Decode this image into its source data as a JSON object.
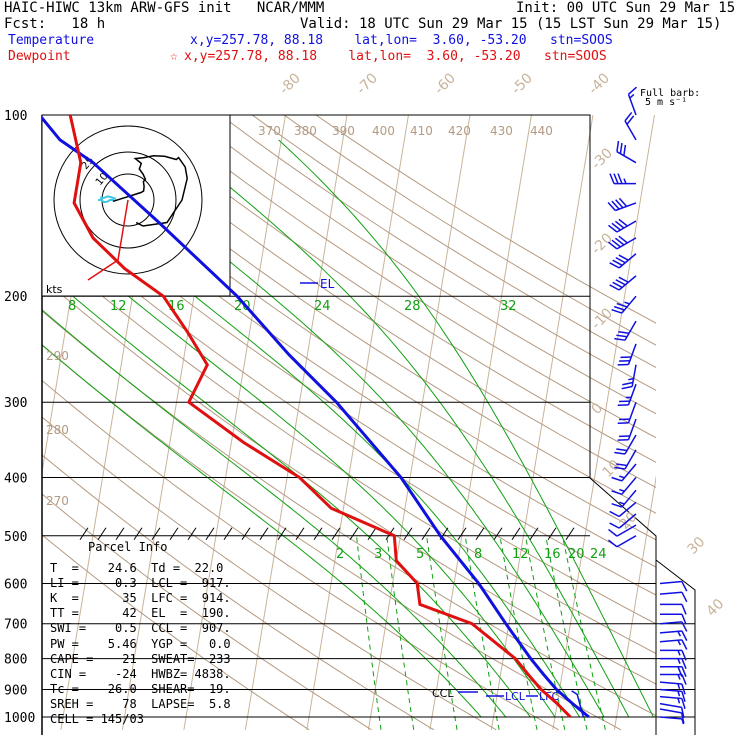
{
  "header": {
    "title": "HAIC-HIWC 13km ARW-GFS init   NCAR/MMM",
    "init": "Init: 00 UTC Sun 29 Mar 15",
    "fcst": "Fcst:   18 h",
    "valid": "Valid: 18 UTC Sun 29 Mar 15 (15 LST Sun 29 Mar 15)",
    "temp_label": "Temperature",
    "temp_info": "x,y=257.78, 88.18    lat,lon=  3.60, -53.20   stn=SOOS",
    "dew_label": "Dewpoint",
    "dew_marker": "☆",
    "dew_info": "x,y=257.78, 88.18    lat,lon=  3.60, -53.20   stn=SOOS",
    "barb_label_1": "Full barb:",
    "barb_label_2": "5 m s⁻¹"
  },
  "colors": {
    "temperature": "#1010e0",
    "dewpoint": "#e01010",
    "isotherm": "#c8b49a",
    "dry_adiabat": "#b49a82",
    "moist_adiabat": "#10a010",
    "mixing_ratio": "#10a010",
    "hodo_upper": "#000000",
    "hodo_lower": "#40c8e8"
  },
  "chart_data": {
    "type": "line",
    "title": "",
    "ylabel": "",
    "pressure_levels": [
      "100",
      "200",
      "300",
      "400",
      "500",
      "600",
      "700",
      "800",
      "900",
      "1000"
    ],
    "isotherm_labels": [
      "-80",
      "-70",
      "-60",
      "-50",
      "-40",
      "-30",
      "-20",
      "-10",
      "0",
      "10",
      "20",
      "30",
      "40"
    ],
    "theta_labels_top": [
      "370",
      "380",
      "390",
      "400",
      "410",
      "420",
      "430",
      "440"
    ],
    "theta_labels_left": [
      "290",
      "280",
      "270"
    ],
    "moist_labels_200": [
      "8",
      "12",
      "16",
      "20",
      "24",
      "28",
      "32"
    ],
    "mixing_labels_500": [
      "2",
      "3",
      "5",
      "8",
      "12",
      "16",
      "20",
      "24"
    ],
    "series": [
      {
        "name": "Temperature",
        "points": [
          [
            1000,
            25.5
          ],
          [
            950,
            22.5
          ],
          [
            900,
            19.5
          ],
          [
            850,
            17
          ],
          [
            800,
            14.5
          ],
          [
            700,
            9.5
          ],
          [
            600,
            4
          ],
          [
            500,
            -3.5
          ],
          [
            400,
            -11.5
          ],
          [
            300,
            -24
          ],
          [
            250,
            -33
          ],
          [
            200,
            -43
          ],
          [
            150,
            -58
          ],
          [
            120,
            -70
          ],
          [
            110,
            -76
          ],
          [
            100,
            -80
          ]
        ]
      },
      {
        "name": "Dewpoint",
        "points": [
          [
            1000,
            22.5
          ],
          [
            950,
            20
          ],
          [
            900,
            17
          ],
          [
            850,
            14.5
          ],
          [
            800,
            12
          ],
          [
            700,
            4
          ],
          [
            650,
            -5
          ],
          [
            600,
            -6
          ],
          [
            550,
            -10
          ],
          [
            500,
            -11
          ],
          [
            450,
            -22
          ],
          [
            400,
            -28
          ],
          [
            350,
            -38
          ],
          [
            300,
            -48
          ],
          [
            260,
            -46
          ],
          [
            230,
            -50
          ],
          [
            200,
            -55
          ],
          [
            180,
            -62
          ],
          [
            160,
            -68
          ],
          [
            140,
            -72
          ],
          [
            120,
            -72
          ],
          [
            100,
            -75
          ]
        ]
      }
    ],
    "annotations": [
      "EL",
      "CCL",
      "LCL",
      "LFC"
    ],
    "wind_profile": [
      [
        1000,
        95,
        4
      ],
      [
        970,
        100,
        6
      ],
      [
        950,
        100,
        7
      ],
      [
        925,
        95,
        8
      ],
      [
        900,
        95,
        9
      ],
      [
        875,
        95,
        9
      ],
      [
        850,
        90,
        9
      ],
      [
        825,
        90,
        10
      ],
      [
        800,
        90,
        9
      ],
      [
        775,
        90,
        9
      ],
      [
        750,
        85,
        8
      ],
      [
        725,
        85,
        8
      ],
      [
        700,
        85,
        7
      ],
      [
        675,
        90,
        6
      ],
      [
        650,
        90,
        5
      ],
      [
        625,
        85,
        5
      ],
      [
        600,
        85,
        5
      ],
      [
        500,
        240,
        5
      ],
      [
        480,
        240,
        6
      ],
      [
        460,
        230,
        7
      ],
      [
        440,
        230,
        7
      ],
      [
        420,
        220,
        8
      ],
      [
        400,
        220,
        8
      ],
      [
        380,
        220,
        9
      ],
      [
        360,
        210,
        10
      ],
      [
        340,
        210,
        10
      ],
      [
        320,
        200,
        11
      ],
      [
        300,
        200,
        12
      ],
      [
        280,
        200,
        13
      ],
      [
        260,
        190,
        14
      ],
      [
        240,
        200,
        15
      ],
      [
        220,
        210,
        17
      ],
      [
        200,
        220,
        19
      ],
      [
        185,
        230,
        21
      ],
      [
        170,
        230,
        22
      ],
      [
        160,
        240,
        22
      ],
      [
        150,
        240,
        22
      ],
      [
        140,
        250,
        21
      ],
      [
        130,
        270,
        18
      ],
      [
        120,
        300,
        15
      ],
      [
        110,
        330,
        10
      ],
      [
        100,
        340,
        8
      ]
    ]
  },
  "hodograph": {
    "units_label": "kts",
    "ring_labels": [
      "10",
      "25"
    ]
  },
  "parcel_info": {
    "title": "Parcel Info",
    "rows": [
      "T  =    24.6  Td =  22.0",
      "LI =    -0.3  LCL =  917.",
      "K  =      35  LFC =  914.",
      "TT =      42  EL  =  190.",
      "SWI =    0.5  CCL =  907.",
      "PW =    5.46  YGP =   0.0",
      "CAPE =    21  SWEAT=  233",
      "CIN =    -24  HWBZ= 4838.",
      "Tc =    26.0  SHEAR=  19.",
      "SREH =    78  LAPSE=  5.8",
      "CELL = 145/03"
    ]
  }
}
